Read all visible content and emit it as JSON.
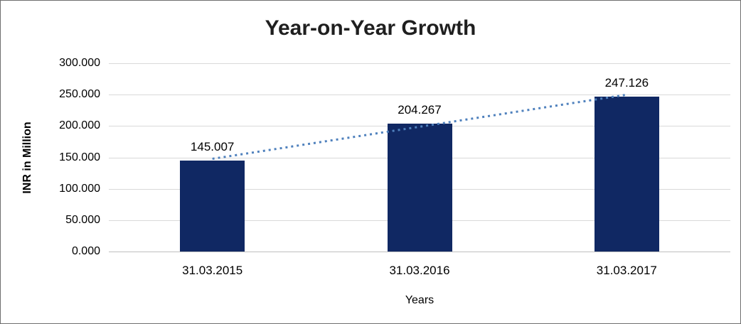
{
  "chart_data": {
    "type": "bar",
    "title": "Year-on-Year Growth",
    "xlabel": "Years",
    "ylabel": "INR in Million",
    "categories": [
      "31.03.2015",
      "31.03.2016",
      "31.03.2017"
    ],
    "values": [
      145.007,
      204.267,
      247.126
    ],
    "value_labels": [
      "145.007",
      "204.267",
      "247.126"
    ],
    "ytick_labels": [
      "0.000",
      "50.000",
      "100.000",
      "150.000",
      "200.000",
      "250.000",
      "300.000"
    ],
    "ytick_step": 50,
    "ylim": [
      0,
      300
    ],
    "grid": true,
    "legend_position": "none",
    "bar_color": "#102863",
    "trendline": {
      "style": "dotted",
      "color": "#4f81bd",
      "fit": "linear"
    },
    "gridline_color": "#d9d9d9",
    "frame_border_color": "#6e6e6e",
    "title_color": "#1f1f1f"
  }
}
